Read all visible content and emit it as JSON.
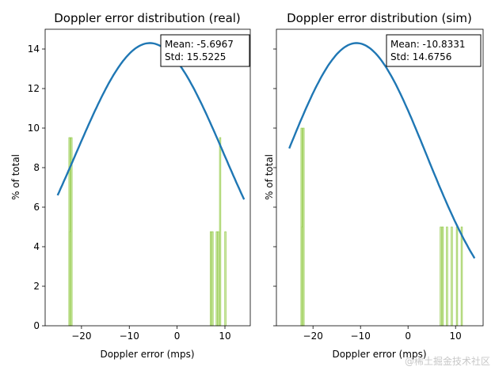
{
  "chart_data": [
    {
      "type": "bar",
      "title": "Doppler error distribution (real)",
      "xlabel": "Doppler error (mps)",
      "ylabel": "% of total",
      "xlim": [
        -27.6,
        15.3
      ],
      "ylim": [
        0,
        15
      ],
      "xticks": [
        -20,
        -10,
        0,
        10
      ],
      "xtick_labels": [
        "−20",
        "−10",
        "0",
        "10"
      ],
      "yticks": [
        0,
        2,
        4,
        6,
        8,
        10,
        12,
        14
      ],
      "ytick_labels": [
        "0",
        "2",
        "4",
        "6",
        "8",
        "10",
        "12",
        "14"
      ],
      "grid": false,
      "histogram": {
        "color": "#8cc63f",
        "bin_width": 0.3,
        "bars": [
          {
            "x": -22.5,
            "value": 9.52
          },
          {
            "x": -22.3,
            "value": 4.76
          },
          {
            "x": -22.1,
            "value": 9.52
          },
          {
            "x": 7.05,
            "value": 4.76
          },
          {
            "x": 7.4,
            "value": 4.76
          },
          {
            "x": 8.3,
            "value": 4.76
          },
          {
            "x": 8.6,
            "value": 4.76
          },
          {
            "x": 9.0,
            "value": 9.52
          },
          {
            "x": 10.1,
            "value": 4.76
          }
        ]
      },
      "fit_curve": {
        "type": "normal",
        "mean": -5.6967,
        "std": 15.5225,
        "peak": 14.3,
        "x_range": [
          -25,
          14
        ],
        "color": "#1f77b4"
      },
      "annotation": {
        "mean_text": "Mean: -5.6967",
        "std_text": "Std: 15.5225",
        "placement": "top-right"
      }
    },
    {
      "type": "bar",
      "title": "Doppler error distribution (sim)",
      "xlabel": "Doppler error (mps)",
      "ylabel": "% of total",
      "xlim": [
        -27.7,
        15.8
      ],
      "ylim": [
        0,
        15
      ],
      "xticks": [
        -20,
        -10,
        0,
        10
      ],
      "xtick_labels": [
        "−20",
        "−10",
        "0",
        "10"
      ],
      "yticks": [
        0,
        2,
        4,
        6,
        8,
        10,
        12,
        14
      ],
      "ytick_labels": [],
      "grid": false,
      "histogram": {
        "color": "#8cc63f",
        "bin_width": 0.3,
        "bars": [
          {
            "x": -22.4,
            "value": 10
          },
          {
            "x": -22.2,
            "value": 5
          },
          {
            "x": -22.0,
            "value": 10
          },
          {
            "x": 6.9,
            "value": 5
          },
          {
            "x": 7.3,
            "value": 5
          },
          {
            "x": 8.2,
            "value": 5
          },
          {
            "x": 9.2,
            "value": 5
          },
          {
            "x": 10.3,
            "value": 5
          },
          {
            "x": 11.3,
            "value": 5
          }
        ]
      },
      "fit_curve": {
        "type": "normal",
        "mean": -10.8331,
        "std": 14.6756,
        "peak": 14.3,
        "x_range": [
          -25,
          14
        ],
        "color": "#1f77b4"
      },
      "annotation": {
        "mean_text": "Mean: -10.8331",
        "std_text": "Std: 14.6756",
        "placement": "top-right"
      }
    }
  ],
  "watermark": "@稀土掘金技术社区"
}
